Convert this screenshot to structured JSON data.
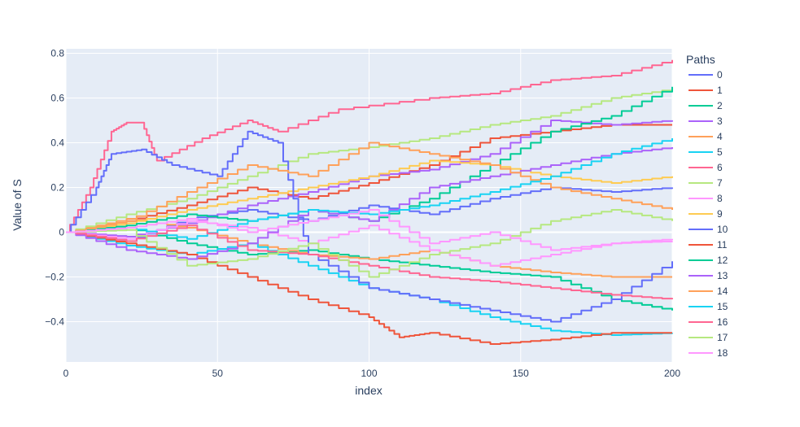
{
  "chart_data": {
    "type": "line",
    "title": "",
    "xlabel": "index",
    "ylabel": "Value of S",
    "xlim": [
      0,
      200
    ],
    "ylim": [
      -0.58,
      0.82
    ],
    "x_ticks": [
      0,
      50,
      100,
      150,
      200
    ],
    "y_ticks": [
      -0.4,
      -0.2,
      0,
      0.2,
      0.4,
      0.6,
      0.8
    ],
    "grid": true,
    "legend": {
      "title": "Paths",
      "placement": "right"
    },
    "series": [
      {
        "name": "0",
        "color": "#636EFA",
        "points": [
          [
            0,
            0
          ],
          [
            20,
            -0.04
          ],
          [
            40,
            0.06
          ],
          [
            60,
            0.1
          ],
          [
            80,
            0.05
          ],
          [
            100,
            0.12
          ],
          [
            120,
            0.08
          ],
          [
            140,
            0.15
          ],
          [
            160,
            0.2
          ],
          [
            180,
            0.18
          ],
          [
            200,
            0.2
          ]
        ]
      },
      {
        "name": "1",
        "color": "#EF553B",
        "points": [
          [
            0,
            0
          ],
          [
            20,
            0.05
          ],
          [
            40,
            0.12
          ],
          [
            60,
            0.2
          ],
          [
            80,
            0.15
          ],
          [
            100,
            0.22
          ],
          [
            120,
            0.3
          ],
          [
            140,
            0.42
          ],
          [
            160,
            0.45
          ],
          [
            180,
            0.48
          ],
          [
            200,
            0.48
          ]
        ]
      },
      {
        "name": "2",
        "color": "#00CC96",
        "points": [
          [
            0,
            0
          ],
          [
            20,
            0.02
          ],
          [
            40,
            -0.05
          ],
          [
            60,
            -0.1
          ],
          [
            80,
            -0.08
          ],
          [
            100,
            -0.12
          ],
          [
            120,
            -0.15
          ],
          [
            140,
            -0.18
          ],
          [
            160,
            -0.2
          ],
          [
            180,
            -0.3
          ],
          [
            200,
            -0.35
          ]
        ]
      },
      {
        "name": "3",
        "color": "#AB63FA",
        "points": [
          [
            0,
            0
          ],
          [
            20,
            -0.02
          ],
          [
            40,
            0.04
          ],
          [
            60,
            0.12
          ],
          [
            80,
            0.18
          ],
          [
            100,
            0.25
          ],
          [
            120,
            0.28
          ],
          [
            140,
            0.35
          ],
          [
            160,
            0.5
          ],
          [
            180,
            0.48
          ],
          [
            200,
            0.5
          ]
        ]
      },
      {
        "name": "4",
        "color": "#FFA15A",
        "points": [
          [
            0,
            0
          ],
          [
            20,
            0.06
          ],
          [
            40,
            0.02
          ],
          [
            60,
            -0.05
          ],
          [
            80,
            -0.1
          ],
          [
            100,
            -0.12
          ],
          [
            120,
            -0.08
          ],
          [
            140,
            -0.15
          ],
          [
            160,
            -0.18
          ],
          [
            180,
            -0.2
          ],
          [
            200,
            -0.2
          ]
        ]
      },
      {
        "name": "5",
        "color": "#19D3F3",
        "points": [
          [
            0,
            0
          ],
          [
            20,
            -0.06
          ],
          [
            40,
            -0.1
          ],
          [
            60,
            -0.05
          ],
          [
            80,
            -0.15
          ],
          [
            100,
            -0.25
          ],
          [
            120,
            -0.3
          ],
          [
            140,
            -0.38
          ],
          [
            160,
            -0.44
          ],
          [
            180,
            -0.46
          ],
          [
            200,
            -0.45
          ]
        ]
      },
      {
        "name": "6",
        "color": "#FF6692",
        "points": [
          [
            0,
            0
          ],
          [
            8,
            0.2
          ],
          [
            15,
            0.45
          ],
          [
            20,
            0.49
          ],
          [
            25,
            0.49
          ],
          [
            30,
            0.32
          ],
          [
            45,
            0.42
          ],
          [
            60,
            0.5
          ],
          [
            70,
            0.45
          ],
          [
            90,
            0.55
          ],
          [
            120,
            0.6
          ],
          [
            140,
            0.62
          ],
          [
            160,
            0.68
          ],
          [
            180,
            0.7
          ],
          [
            200,
            0.77
          ]
        ]
      },
      {
        "name": "7",
        "color": "#B6E880",
        "points": [
          [
            0,
            0
          ],
          [
            20,
            0.08
          ],
          [
            40,
            0.15
          ],
          [
            60,
            0.25
          ],
          [
            80,
            0.35
          ],
          [
            100,
            0.38
          ],
          [
            120,
            0.42
          ],
          [
            140,
            0.48
          ],
          [
            160,
            0.52
          ],
          [
            180,
            0.6
          ],
          [
            200,
            0.64
          ]
        ]
      },
      {
        "name": "8",
        "color": "#FF97FF",
        "points": [
          [
            0,
            0
          ],
          [
            20,
            -0.03
          ],
          [
            40,
            0.05
          ],
          [
            60,
            0.02
          ],
          [
            80,
            -0.05
          ],
          [
            100,
            0.03
          ],
          [
            120,
            -0.08
          ],
          [
            140,
            -0.15
          ],
          [
            160,
            -0.1
          ],
          [
            180,
            -0.05
          ],
          [
            200,
            -0.03
          ]
        ]
      },
      {
        "name": "9",
        "color": "#FECB52",
        "points": [
          [
            0,
            0
          ],
          [
            20,
            0.04
          ],
          [
            40,
            0.1
          ],
          [
            60,
            0.15
          ],
          [
            80,
            0.2
          ],
          [
            100,
            0.25
          ],
          [
            120,
            0.32
          ],
          [
            140,
            0.3
          ],
          [
            160,
            0.25
          ],
          [
            180,
            0.22
          ],
          [
            200,
            0.25
          ]
        ]
      },
      {
        "name": "10",
        "color": "#636EFA",
        "points": [
          [
            0,
            0
          ],
          [
            10,
            0.2
          ],
          [
            15,
            0.35
          ],
          [
            25,
            0.37
          ],
          [
            35,
            0.3
          ],
          [
            50,
            0.25
          ],
          [
            60,
            0.45
          ],
          [
            70,
            0.4
          ],
          [
            80,
            -0.1
          ],
          [
            100,
            -0.25
          ],
          [
            120,
            -0.3
          ],
          [
            140,
            -0.35
          ],
          [
            160,
            -0.4
          ],
          [
            180,
            -0.3
          ],
          [
            200,
            -0.13
          ]
        ]
      },
      {
        "name": "11",
        "color": "#EF553B",
        "points": [
          [
            0,
            0
          ],
          [
            20,
            -0.05
          ],
          [
            40,
            -0.1
          ],
          [
            60,
            -0.2
          ],
          [
            80,
            -0.3
          ],
          [
            100,
            -0.38
          ],
          [
            110,
            -0.47
          ],
          [
            120,
            -0.45
          ],
          [
            140,
            -0.5
          ],
          [
            160,
            -0.48
          ],
          [
            180,
            -0.45
          ],
          [
            200,
            -0.45
          ]
        ]
      },
      {
        "name": "12",
        "color": "#00CC96",
        "points": [
          [
            0,
            0
          ],
          [
            20,
            0.03
          ],
          [
            40,
            0.08
          ],
          [
            60,
            0.05
          ],
          [
            80,
            0.1
          ],
          [
            100,
            0.05
          ],
          [
            120,
            0.15
          ],
          [
            140,
            0.3
          ],
          [
            160,
            0.45
          ],
          [
            180,
            0.52
          ],
          [
            200,
            0.65
          ]
        ]
      },
      {
        "name": "13",
        "color": "#AB63FA",
        "points": [
          [
            0,
            0
          ],
          [
            20,
            -0.08
          ],
          [
            40,
            -0.12
          ],
          [
            60,
            -0.05
          ],
          [
            80,
            0.1
          ],
          [
            100,
            0.05
          ],
          [
            120,
            0.2
          ],
          [
            140,
            0.25
          ],
          [
            160,
            0.3
          ],
          [
            180,
            0.35
          ],
          [
            200,
            0.38
          ]
        ]
      },
      {
        "name": "14",
        "color": "#FFA15A",
        "points": [
          [
            0,
            0
          ],
          [
            20,
            0.05
          ],
          [
            40,
            0.18
          ],
          [
            60,
            0.3
          ],
          [
            80,
            0.25
          ],
          [
            100,
            0.4
          ],
          [
            120,
            0.35
          ],
          [
            140,
            0.3
          ],
          [
            160,
            0.2
          ],
          [
            180,
            0.15
          ],
          [
            200,
            0.1
          ]
        ]
      },
      {
        "name": "15",
        "color": "#19D3F3",
        "points": [
          [
            0,
            0
          ],
          [
            20,
            0.02
          ],
          [
            40,
            -0.03
          ],
          [
            60,
            0.05
          ],
          [
            80,
            0.1
          ],
          [
            100,
            0.08
          ],
          [
            120,
            0.12
          ],
          [
            140,
            0.18
          ],
          [
            160,
            0.25
          ],
          [
            180,
            0.35
          ],
          [
            200,
            0.42
          ]
        ]
      },
      {
        "name": "16",
        "color": "#FF6692",
        "points": [
          [
            0,
            0
          ],
          [
            20,
            -0.04
          ],
          [
            40,
            0.03
          ],
          [
            60,
            -0.08
          ],
          [
            80,
            -0.1
          ],
          [
            100,
            -0.15
          ],
          [
            120,
            -0.2
          ],
          [
            140,
            -0.22
          ],
          [
            160,
            -0.25
          ],
          [
            180,
            -0.28
          ],
          [
            200,
            -0.3
          ]
        ]
      },
      {
        "name": "17",
        "color": "#B6E880",
        "points": [
          [
            0,
            0
          ],
          [
            20,
            0.01
          ],
          [
            40,
            -0.15
          ],
          [
            60,
            -0.12
          ],
          [
            80,
            -0.05
          ],
          [
            100,
            -0.2
          ],
          [
            120,
            -0.1
          ],
          [
            140,
            -0.05
          ],
          [
            160,
            0.05
          ],
          [
            180,
            0.1
          ],
          [
            200,
            0.05
          ]
        ]
      },
      {
        "name": "18",
        "color": "#FF97FF",
        "points": [
          [
            0,
            0
          ],
          [
            20,
            0.02
          ],
          [
            40,
            0.06
          ],
          [
            60,
            0.0
          ],
          [
            80,
            0.05
          ],
          [
            100,
            0.1
          ],
          [
            120,
            -0.05
          ],
          [
            140,
            0.0
          ],
          [
            160,
            -0.08
          ],
          [
            180,
            -0.05
          ],
          [
            200,
            -0.04
          ]
        ]
      }
    ]
  }
}
